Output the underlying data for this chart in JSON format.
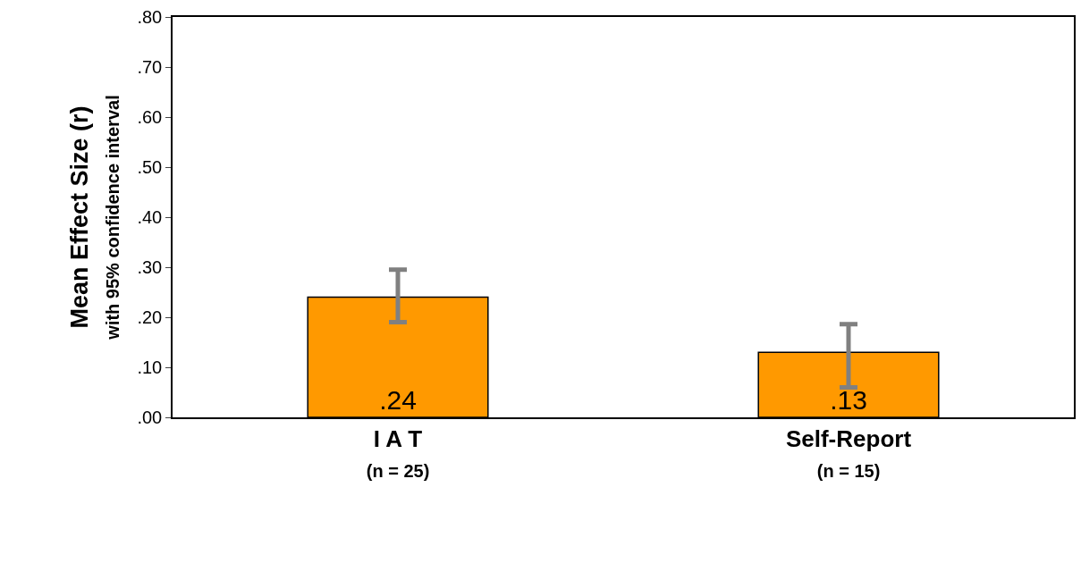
{
  "chart_data": {
    "type": "bar",
    "ylabel": "Mean Effect Size (r)\nwith 95% confidence interval",
    "categories": [
      "I A T\n(n = 25)",
      "Self-Report\n(n = 15)"
    ],
    "series": [
      {
        "color": "#ff9900",
        "values": [
          0.24,
          0.13
        ],
        "value_labels": [
          ".24",
          ".13"
        ],
        "errors": [
          [
            0.19,
            0.295
          ],
          [
            0.06,
            0.186
          ]
        ]
      }
    ],
    "ylim": [
      0,
      0.8
    ],
    "yticks": [
      {
        "value": 0,
        "label": ".00"
      },
      {
        "value": 0.1,
        "label": ".10"
      },
      {
        "value": 0.2,
        "label": ".20"
      },
      {
        "value": 0.3,
        "label": ".30"
      },
      {
        "value": 0.4,
        "label": ".40"
      },
      {
        "value": 0.5,
        "label": ".50"
      },
      {
        "value": 0.6,
        "label": ".60"
      },
      {
        "value": 0.7,
        "label": ".70"
      },
      {
        "value": 0.8,
        "label": ".80"
      }
    ],
    "grid": false,
    "legend": false
  }
}
